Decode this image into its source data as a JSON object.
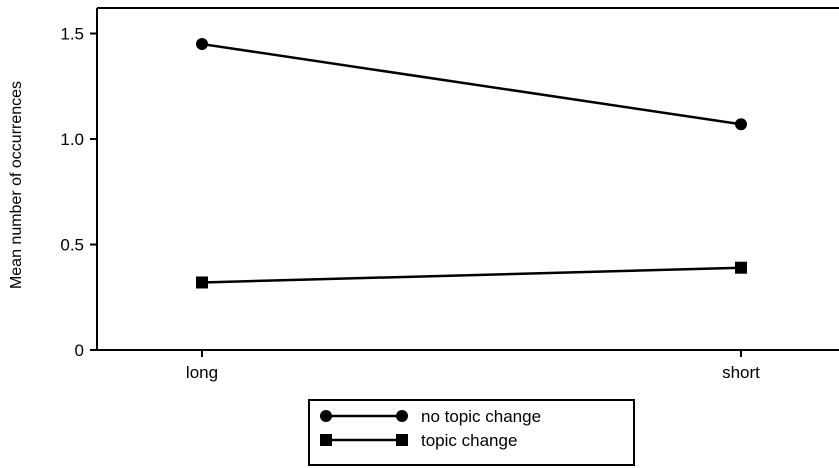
{
  "chart_data": {
    "type": "line",
    "title": "",
    "xlabel": "",
    "ylabel": "Mean number of occurrences",
    "categories": [
      "long",
      "short"
    ],
    "ylim": [
      0,
      1.6
    ],
    "yticks": [
      0,
      0.5,
      1.0,
      1.5
    ],
    "ytick_labels": [
      "0",
      "0.5",
      "1.0",
      "1.5"
    ],
    "grid": false,
    "legend_position": "bottom",
    "series": [
      {
        "name": "no topic change",
        "marker": "circle",
        "values": [
          1.45,
          1.07
        ]
      },
      {
        "name": "topic change",
        "marker": "square",
        "values": [
          0.32,
          0.39
        ]
      }
    ],
    "colors": {
      "line": "#000000",
      "background": "#ffffff"
    }
  }
}
